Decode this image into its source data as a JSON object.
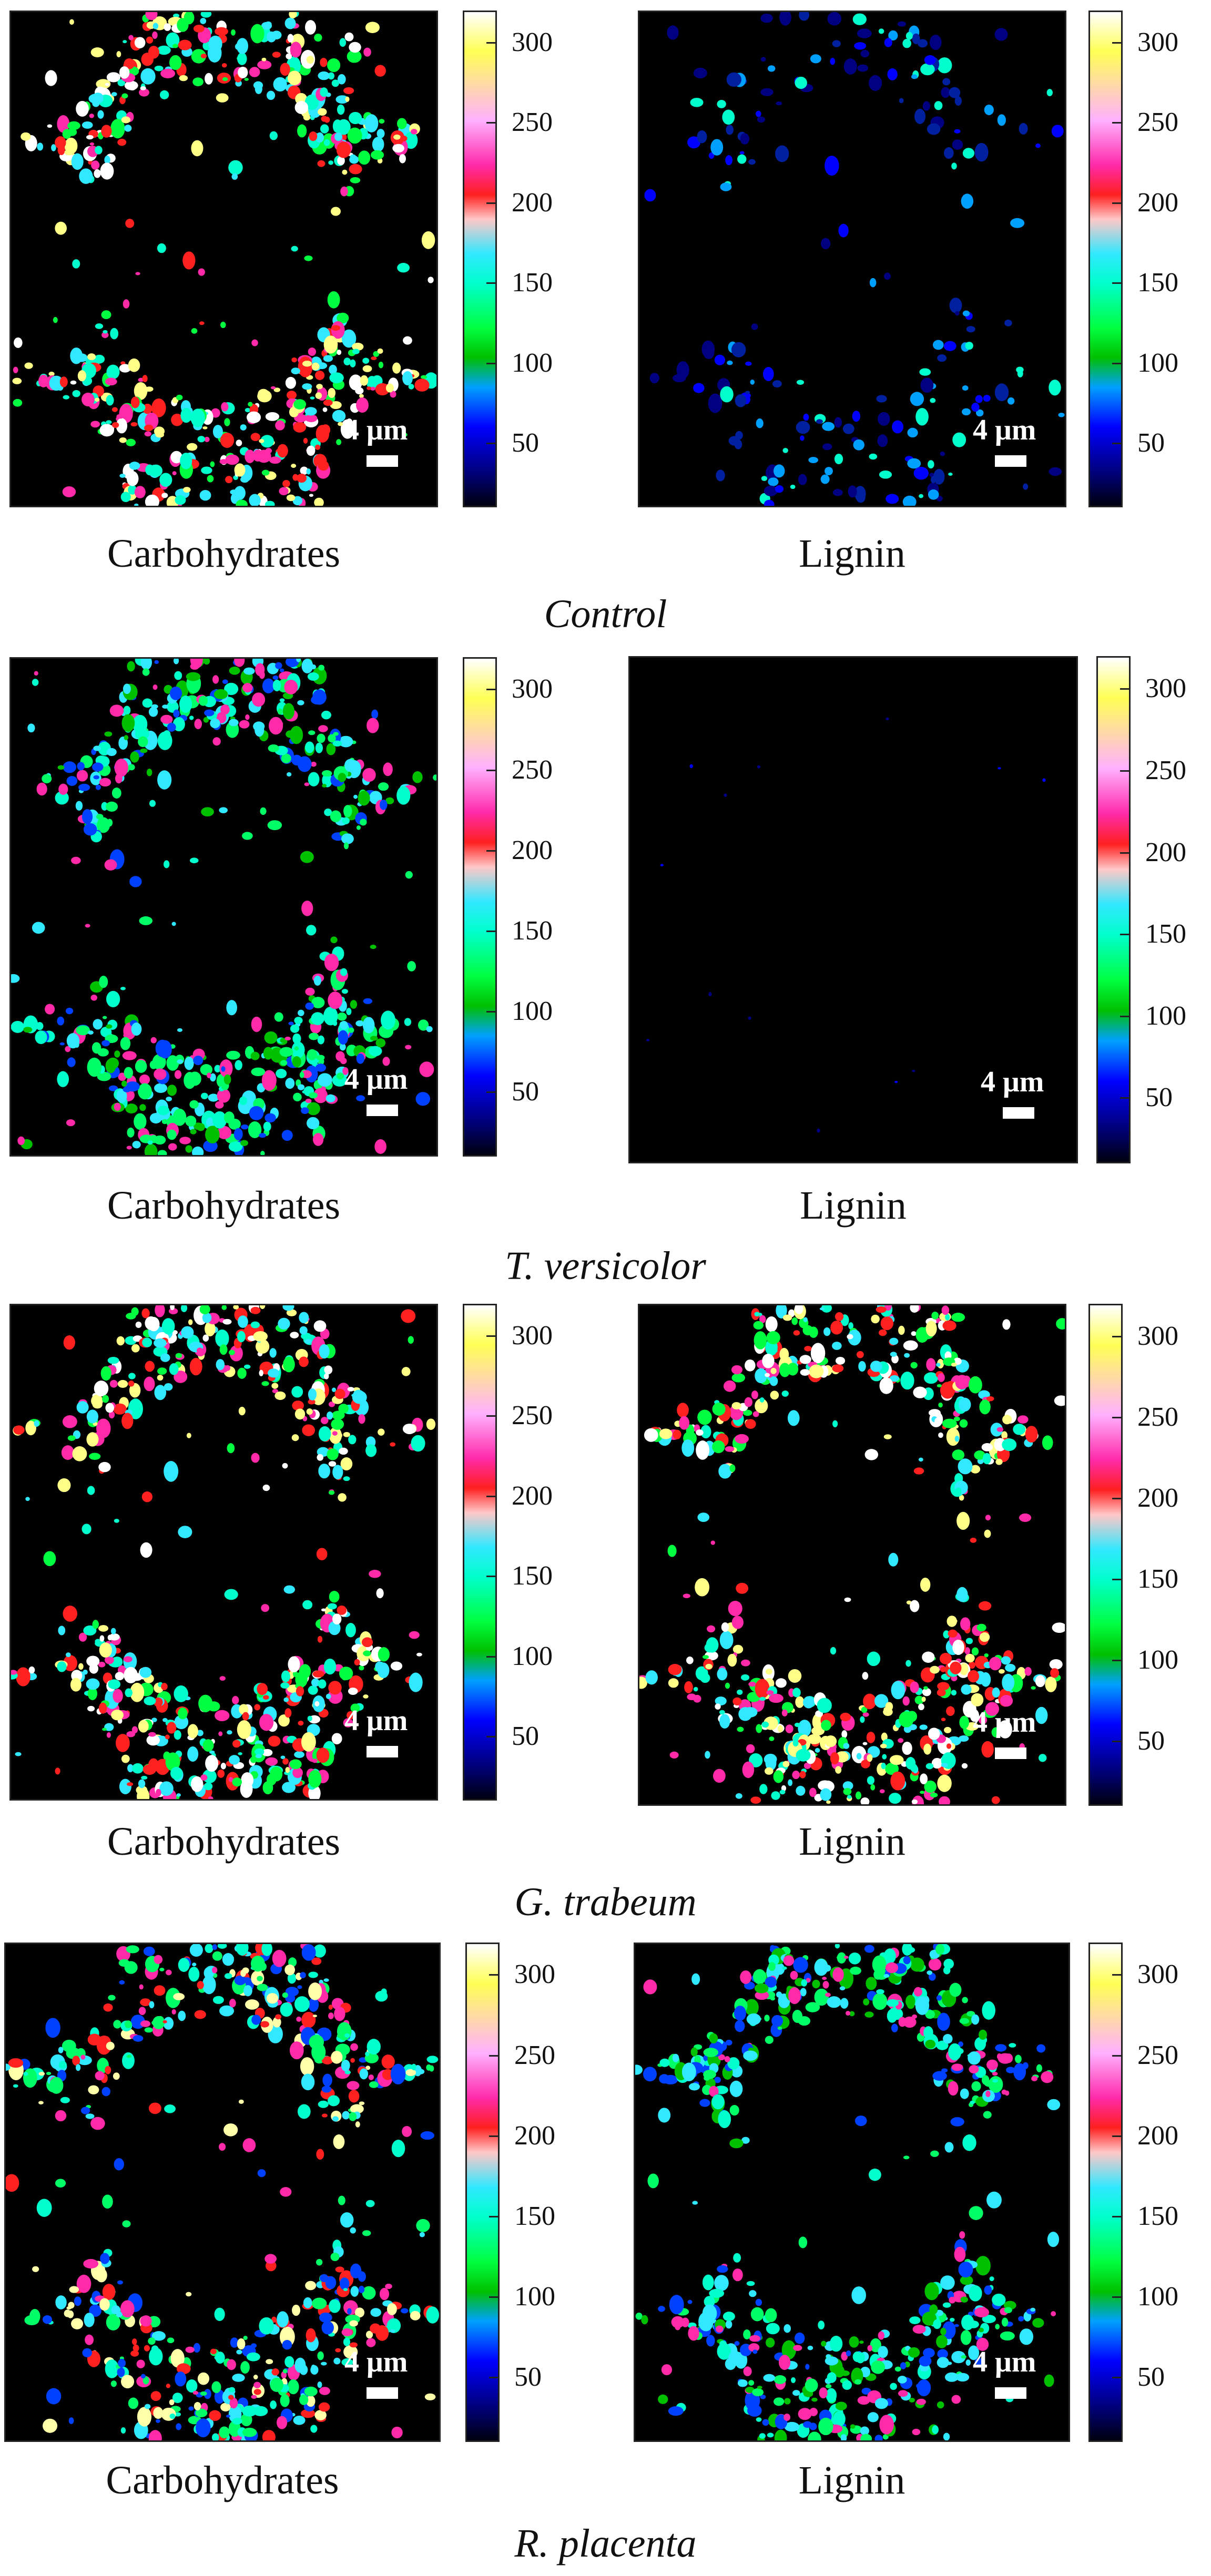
{
  "scale_bar_text": "4 μm",
  "colorbar_ticks": [
    "300",
    "250",
    "200",
    "150",
    "100",
    "50"
  ],
  "colorbar_colors": [
    "#ffffff",
    "#ffff55",
    "#ff2aa8",
    "#ff2020",
    "#30e8ff",
    "#00ff40",
    "#0000ff",
    "#000010"
  ],
  "groups": [
    {
      "name": "Control",
      "panels": [
        {
          "label": "Carbohydrates",
          "intensity": "high"
        },
        {
          "label": "Lignin",
          "intensity": "very-low"
        }
      ]
    },
    {
      "name": "T. versicolor",
      "panels": [
        {
          "label": "Carbohydrates",
          "intensity": "medium"
        },
        {
          "label": "Lignin",
          "intensity": "none"
        }
      ]
    },
    {
      "name": "G. trabeum",
      "panels": [
        {
          "label": "Carbohydrates",
          "intensity": "high"
        },
        {
          "label": "Lignin",
          "intensity": "high"
        }
      ]
    },
    {
      "name": "R. placenta",
      "panels": [
        {
          "label": "Carbohydrates",
          "intensity": "medium-high"
        },
        {
          "label": "Lignin",
          "intensity": "medium"
        }
      ]
    }
  ]
}
